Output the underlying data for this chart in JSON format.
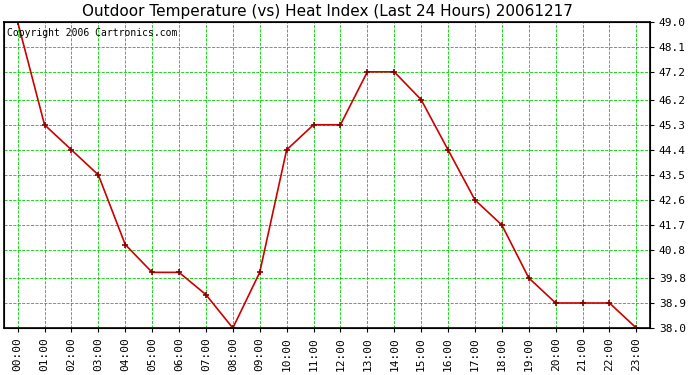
{
  "title": "Outdoor Temperature (vs) Heat Index (Last 24 Hours) 20061217",
  "copyright_text": "Copyright 2006 Cartronics.com",
  "x_labels": [
    "00:00",
    "01:00",
    "02:00",
    "03:00",
    "04:00",
    "05:00",
    "06:00",
    "07:00",
    "08:00",
    "09:00",
    "10:00",
    "11:00",
    "12:00",
    "13:00",
    "14:00",
    "15:00",
    "16:00",
    "17:00",
    "18:00",
    "19:00",
    "20:00",
    "21:00",
    "22:00",
    "23:00"
  ],
  "y_values": [
    49.0,
    45.3,
    44.4,
    43.5,
    41.0,
    40.0,
    40.0,
    39.2,
    38.0,
    40.0,
    44.4,
    45.3,
    45.3,
    47.2,
    47.2,
    46.2,
    44.4,
    42.6,
    41.7,
    39.8,
    38.9,
    38.9,
    38.9,
    38.0
  ],
  "y_min": 38.0,
  "y_max": 49.0,
  "y_ticks": [
    38.0,
    38.9,
    39.8,
    40.8,
    41.7,
    42.6,
    43.5,
    44.4,
    45.3,
    46.2,
    47.2,
    48.1,
    49.0
  ],
  "line_color": "#cc0000",
  "marker_color": "#880000",
  "bg_color": "#ffffff",
  "grid_color": "#00cc00",
  "title_fontsize": 11,
  "tick_fontsize": 8,
  "copyright_fontsize": 7,
  "fig_width": 6.9,
  "fig_height": 3.75,
  "dpi": 100
}
